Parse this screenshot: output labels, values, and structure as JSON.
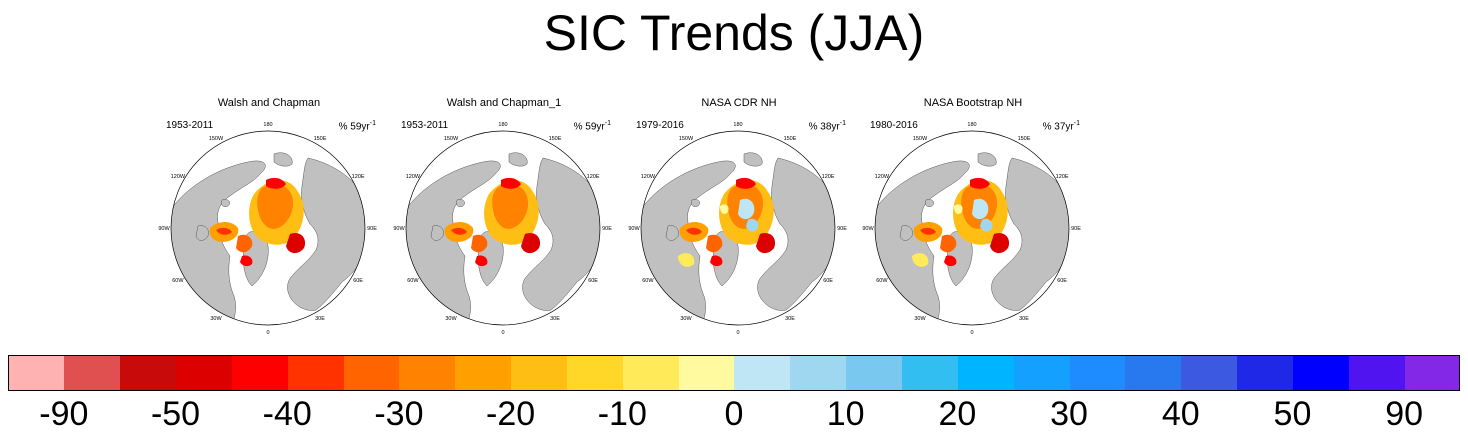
{
  "title": "SIC Trends (JJA)",
  "panels": [
    {
      "title": "Walsh and Chapman",
      "years": "1953-2011",
      "trend": "% 59yr",
      "trend_sup": "-1",
      "style": "warm"
    },
    {
      "title": "Walsh and Chapman_1",
      "years": "1953-2011",
      "trend": "% 59yr",
      "trend_sup": "-1",
      "style": "warm"
    },
    {
      "title": "NASA CDR NH",
      "years": "1979-2016",
      "trend": "% 38yr",
      "trend_sup": "-1",
      "style": "mixed"
    },
    {
      "title": "NASA Bootstrap NH",
      "years": "1980-2016",
      "trend": "% 37yr",
      "trend_sup": "-1",
      "style": "mixed"
    }
  ],
  "lon_labels": [
    "180",
    "150E",
    "120E",
    "90E",
    "60E",
    "30E",
    "0",
    "30W",
    "60W",
    "90W",
    "120W",
    "150W"
  ],
  "colorbar": {
    "colors": [
      "#ffb2b2",
      "#e05050",
      "#c80a0a",
      "#dc0000",
      "#ff0000",
      "#ff3200",
      "#ff6400",
      "#ff8200",
      "#ffa000",
      "#ffbe14",
      "#ffd728",
      "#ffeb5a",
      "#fff9a0",
      "#bee6f5",
      "#a0d7f0",
      "#78c8f0",
      "#32bef0",
      "#00b4ff",
      "#14a0ff",
      "#1e8cff",
      "#2878f0",
      "#3c5ae1",
      "#1e28e6",
      "#0000ff",
      "#5014f0",
      "#8228e6"
    ],
    "labels": [
      "-90",
      "-50",
      "-40",
      "-30",
      "-20",
      "-10",
      "0",
      "10",
      "20",
      "30",
      "40",
      "50",
      "90"
    ]
  },
  "legend_colors": {
    "land": "#c0c0c0",
    "ocean": "#ffffff"
  }
}
